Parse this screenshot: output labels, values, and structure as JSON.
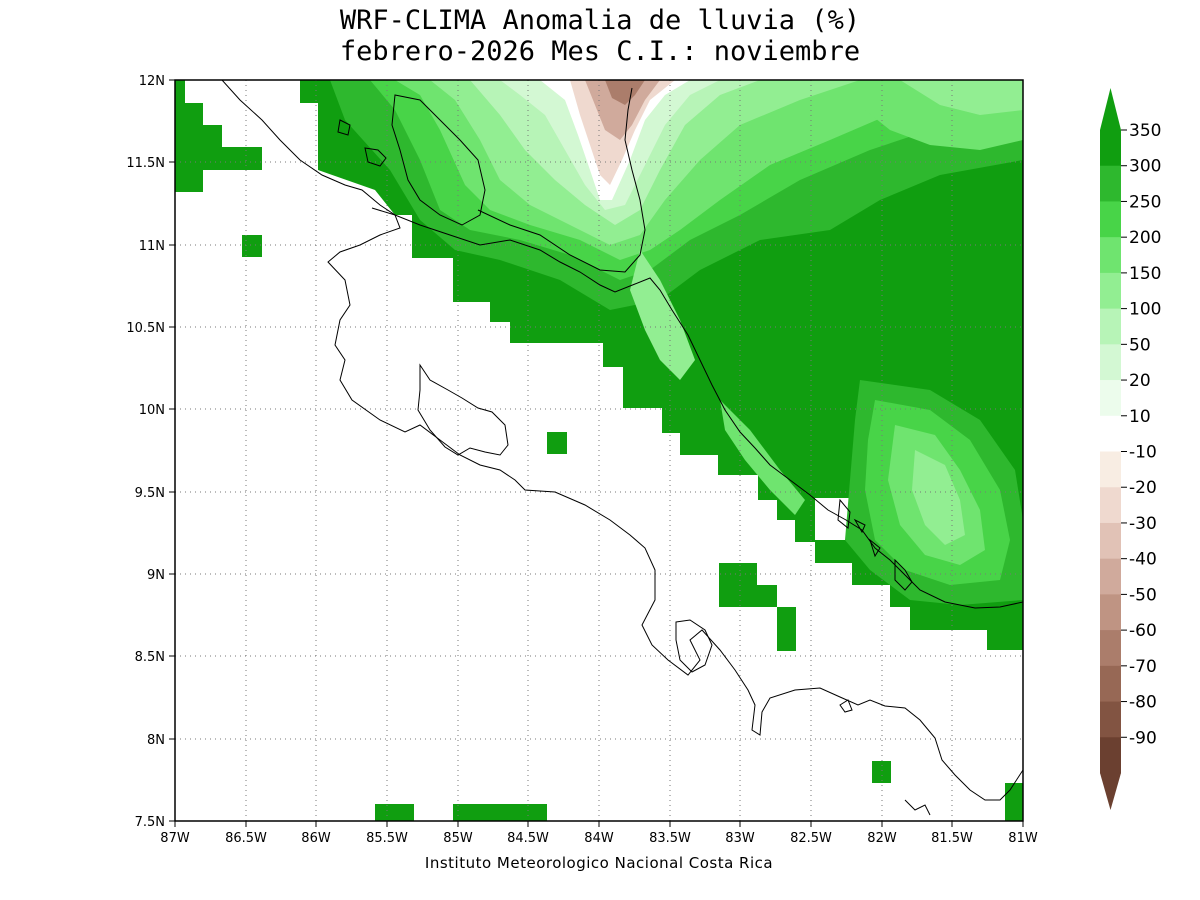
{
  "title_line1": "WRF-CLIMA Anomalia de lluvia (%)",
  "title_line2": "febrero-2026 Mes C.I.: noviembre",
  "credit": "Instituto Meteorologico Nacional Costa Rica",
  "axes": {
    "lon_ticks": [
      "87W",
      "86.5W",
      "86W",
      "85.5W",
      "85W",
      "84.5W",
      "84W",
      "83.5W",
      "83W",
      "82.5W",
      "82W",
      "81.5W",
      "81W"
    ],
    "lat_ticks": [
      "12N",
      "11.5N",
      "11N",
      "10.5N",
      "10N",
      "9.5N",
      "9N",
      "8.5N",
      "8N",
      "7.5N"
    ],
    "lon_range": [
      -87,
      -81
    ],
    "lat_range": [
      7.5,
      12
    ],
    "grid": "dotted"
  },
  "colorbar": {
    "labels": [
      "350",
      "300",
      "250",
      "200",
      "150",
      "100",
      "50",
      "20",
      "10",
      "-10",
      "-20",
      "-30",
      "-40",
      "-50",
      "-60",
      "-70",
      "-80",
      "-90"
    ],
    "colors": [
      "#109e10",
      "#2eb82e",
      "#48d448",
      "#6fe46f",
      "#92ee92",
      "#b7f4b7",
      "#d3f8d3",
      "#ecfcec",
      "#ffffff",
      "#f8ede3",
      "#efd9cf",
      "#e1c2b6",
      "#d0aa9c",
      "#bf9483",
      "#ab7d6b",
      "#976855",
      "#825442",
      "#6b4030"
    ]
  },
  "colors": {
    "pos_350": "#109e10",
    "pos_300": "#2eb82e",
    "pos_250": "#48d448",
    "pos_200": "#6fe46f",
    "pos_150": "#92ee92",
    "pos_100": "#b7f4b7",
    "pos_50": "#d3f8d3",
    "neg_20": "#efd9cf",
    "neg_40": "#d0aa9c",
    "neg_60": "#ab7d6b",
    "coast": "#000000"
  }
}
